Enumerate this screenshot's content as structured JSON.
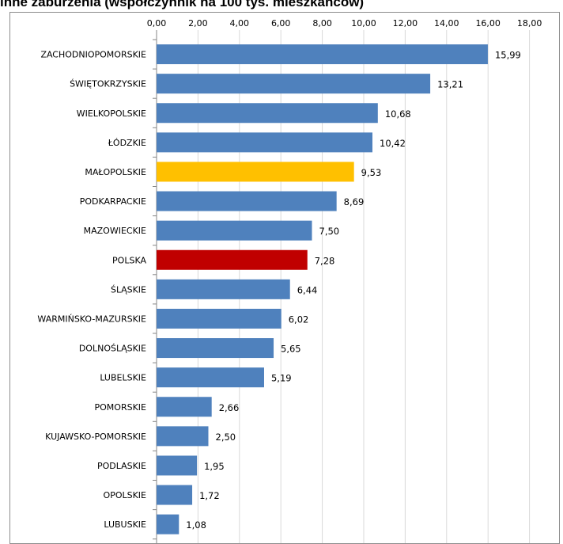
{
  "chart_data": {
    "type": "bar",
    "orientation": "horizontal",
    "title": "inne zaburzenia (współczynnik na 100 tys. mieszkańców)",
    "xlim": [
      0,
      18
    ],
    "tick_labels": [
      "0,00",
      "2,00",
      "4,00",
      "6,00",
      "8,00",
      "10,00",
      "12,00",
      "14,00",
      "16,00",
      "18,00"
    ],
    "grid": "vertical",
    "categories": [
      "ZACHODNIOPOMORSKIE",
      "ŚWIĘTOKRZYSKIE",
      "WIELKOPOLSKIE",
      "ŁÓDZKIE",
      "MAŁOPOLSKIE",
      "PODKARPACKIE",
      "MAZOWIECKIE",
      "POLSKA",
      "ŚLĄSKIE",
      "WARMIŃSKO-MAZURSKIE",
      "DOLNOŚLĄSKIE",
      "LUBELSKIE",
      "POMORSKIE",
      "KUJAWSKO-POMORSKIE",
      "PODLASKIE",
      "OPOLSKIE",
      "LUBUSKIE"
    ],
    "values": [
      15.99,
      13.21,
      10.68,
      10.42,
      9.53,
      8.69,
      7.5,
      7.28,
      6.44,
      6.02,
      5.65,
      5.19,
      2.66,
      2.5,
      1.95,
      1.72,
      1.08
    ],
    "value_labels": [
      "15,99",
      "13,21",
      "10,68",
      "10,42",
      "9,53",
      "8,69",
      "7,50",
      "7,28",
      "6,44",
      "6,02",
      "5,65",
      "5,19",
      "2,66",
      "2,50",
      "1,95",
      "1,72",
      "1,08"
    ],
    "colors": {
      "default": "#4f81bd",
      "MAŁOPOLSKIE": "#ffc000",
      "POLSKA": "#c00000",
      "grid": "#d9d9d9",
      "axis": "#868686"
    }
  }
}
